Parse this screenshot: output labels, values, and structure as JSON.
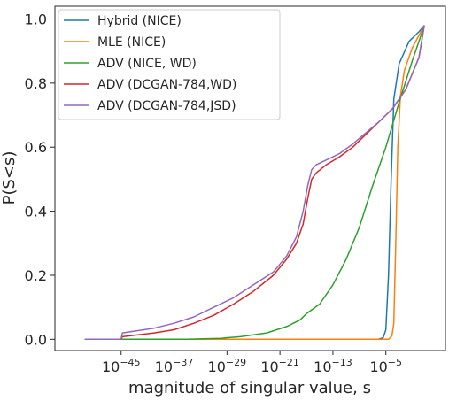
{
  "chart_data": {
    "type": "line",
    "xlabel": "magnitude of singular value, s",
    "ylabel": "P(S<s)",
    "x_scale": "log10",
    "xlim_log10": [
      -55,
      4
    ],
    "ylim": [
      -0.035,
      1.04
    ],
    "x_ticks": [
      {
        "exp": -45,
        "base": "10",
        "sup": "−45"
      },
      {
        "exp": -37,
        "base": "10",
        "sup": "−37"
      },
      {
        "exp": -29,
        "base": "10",
        "sup": "−29"
      },
      {
        "exp": -21,
        "base": "10",
        "sup": "−21"
      },
      {
        "exp": -13,
        "base": "10",
        "sup": "−13"
      },
      {
        "exp": -5,
        "base": "10",
        "sup": "−5"
      }
    ],
    "y_ticks": [
      {
        "value": 0.0,
        "label": "0.0"
      },
      {
        "value": 0.2,
        "label": "0.2"
      },
      {
        "value": 0.4,
        "label": "0.4"
      },
      {
        "value": 0.6,
        "label": "0.6"
      },
      {
        "value": 0.8,
        "label": "0.8"
      },
      {
        "value": 1.0,
        "label": "1.0"
      }
    ],
    "legend_position": "top-left",
    "grid": false,
    "series": [
      {
        "name": "Hybrid (NICE)",
        "color": "#1f77b4",
        "points": [
          [
            -50.5,
            0
          ],
          [
            -6.2,
            0
          ],
          [
            -5.4,
            0.005
          ],
          [
            -5.0,
            0.03
          ],
          [
            -4.6,
            0.2
          ],
          [
            -4.2,
            0.5
          ],
          [
            -3.8,
            0.75
          ],
          [
            -3.0,
            0.86
          ],
          [
            -1.5,
            0.93
          ],
          [
            0.0,
            0.96
          ],
          [
            0.8,
            0.98
          ]
        ]
      },
      {
        "name": "MLE (NICE)",
        "color": "#ff7f0e",
        "points": [
          [
            -50.5,
            0
          ],
          [
            -4.6,
            0
          ],
          [
            -4.1,
            0.01
          ],
          [
            -3.8,
            0.05
          ],
          [
            -3.5,
            0.3
          ],
          [
            -3.2,
            0.6
          ],
          [
            -2.8,
            0.76
          ],
          [
            -2.2,
            0.84
          ],
          [
            -1.0,
            0.91
          ],
          [
            0.3,
            0.96
          ],
          [
            0.8,
            0.98
          ]
        ]
      },
      {
        "name": "ADV (NICE, WD)",
        "color": "#2ca02c",
        "points": [
          [
            -50.5,
            0
          ],
          [
            -35,
            0
          ],
          [
            -30,
            0.003
          ],
          [
            -27,
            0.008
          ],
          [
            -23,
            0.02
          ],
          [
            -20,
            0.04
          ],
          [
            -18,
            0.06
          ],
          [
            -17,
            0.08
          ],
          [
            -15,
            0.11
          ],
          [
            -13,
            0.17
          ],
          [
            -11,
            0.25
          ],
          [
            -9,
            0.35
          ],
          [
            -7,
            0.48
          ],
          [
            -5,
            0.6
          ],
          [
            -3,
            0.74
          ],
          [
            -1,
            0.87
          ],
          [
            0,
            0.93
          ],
          [
            0.8,
            0.98
          ]
        ]
      },
      {
        "name": "ADV (DCGAN-784,WD)",
        "color": "#d62728",
        "points": [
          [
            -50.5,
            0
          ],
          [
            -45,
            0
          ],
          [
            -44.8,
            0.008
          ],
          [
            -40,
            0.02
          ],
          [
            -37,
            0.03
          ],
          [
            -34,
            0.05
          ],
          [
            -31,
            0.075
          ],
          [
            -28,
            0.11
          ],
          [
            -25,
            0.15
          ],
          [
            -22,
            0.2
          ],
          [
            -20,
            0.25
          ],
          [
            -18.5,
            0.3
          ],
          [
            -17.5,
            0.36
          ],
          [
            -16.8,
            0.44
          ],
          [
            -16.2,
            0.5
          ],
          [
            -15.5,
            0.52
          ],
          [
            -14,
            0.545
          ],
          [
            -12,
            0.57
          ],
          [
            -10,
            0.6
          ],
          [
            -8,
            0.64
          ],
          [
            -6,
            0.68
          ],
          [
            -4,
            0.72
          ],
          [
            -2,
            0.78
          ],
          [
            0,
            0.88
          ],
          [
            0.8,
            0.98
          ]
        ]
      },
      {
        "name": "ADV (DCGAN-784,JSD)",
        "color": "#9467bd",
        "points": [
          [
            -50.5,
            0
          ],
          [
            -45,
            0
          ],
          [
            -44.8,
            0.02
          ],
          [
            -40,
            0.035
          ],
          [
            -37,
            0.05
          ],
          [
            -34,
            0.07
          ],
          [
            -31,
            0.1
          ],
          [
            -28,
            0.13
          ],
          [
            -25,
            0.17
          ],
          [
            -22,
            0.21
          ],
          [
            -20,
            0.26
          ],
          [
            -18.5,
            0.32
          ],
          [
            -17.5,
            0.4
          ],
          [
            -16.8,
            0.48
          ],
          [
            -16.2,
            0.53
          ],
          [
            -15.5,
            0.545
          ],
          [
            -14,
            0.56
          ],
          [
            -12,
            0.58
          ],
          [
            -10,
            0.61
          ],
          [
            -8,
            0.645
          ],
          [
            -6,
            0.68
          ],
          [
            -4,
            0.72
          ],
          [
            -2,
            0.78
          ],
          [
            0,
            0.88
          ],
          [
            0.8,
            0.98
          ]
        ]
      }
    ]
  }
}
